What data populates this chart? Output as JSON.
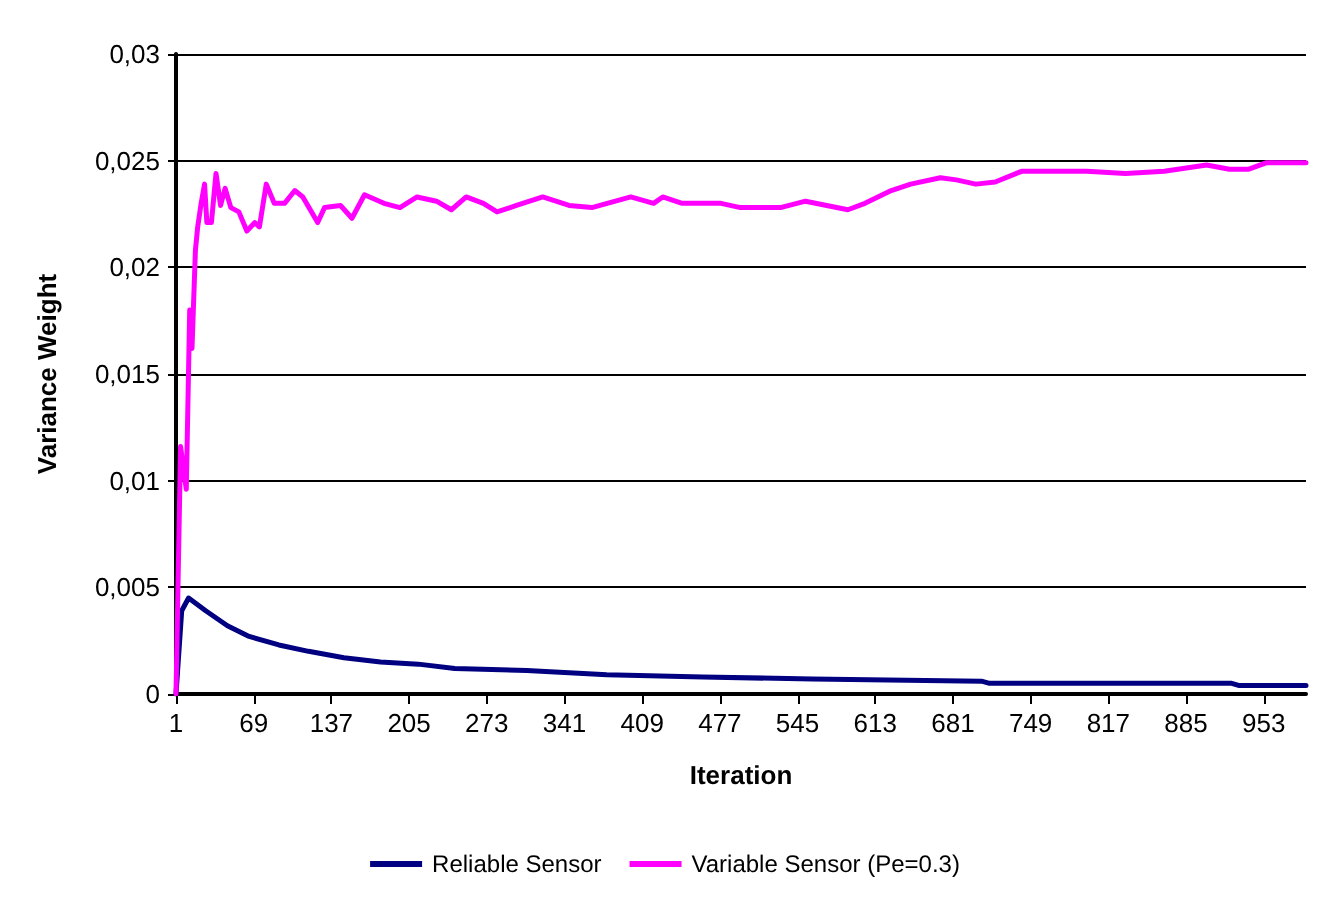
{
  "chart_data": {
    "type": "line",
    "xlabel": "Iteration",
    "ylabel": "Variance Weight",
    "xlim": [
      1,
      990
    ],
    "xticks": [
      1,
      69,
      137,
      205,
      273,
      341,
      409,
      477,
      545,
      613,
      681,
      749,
      817,
      885,
      953
    ],
    "ylim": [
      0,
      0.03
    ],
    "yticks": [
      0,
      {
        "value": 0.005,
        "label": "0,005"
      },
      {
        "value": 0.01,
        "label": "0,01"
      },
      {
        "value": 0.015,
        "label": "0,015"
      },
      {
        "value": 0.02,
        "label": "0,02"
      },
      {
        "value": 0.025,
        "label": "0,025"
      },
      {
        "value": 0.03,
        "label": "0,03"
      }
    ],
    "grid": "y",
    "legend": "bottom",
    "marker": "none",
    "line_style": "solid",
    "series": [
      {
        "name": "Reliable Sensor",
        "color": "#000080",
        "x": [
          1,
          6,
          12,
          27,
          46,
          65,
          91,
          117,
          148,
          180,
          213,
          245,
          308,
          378,
          462,
          558,
          706,
          713,
          925,
          931,
          990
        ],
        "values": [
          0,
          0.0039,
          0.0045,
          0.0039,
          0.0032,
          0.0027,
          0.0023,
          0.002,
          0.0017,
          0.0015,
          0.0014,
          0.0012,
          0.0011,
          0.0009,
          0.0008,
          0.0007,
          0.0006,
          0.0005,
          0.0005,
          0.0004,
          0.0004
        ]
      },
      {
        "name": "Variable Sensor (Pe=0.3)",
        "color": "#ff00ff",
        "x": [
          1,
          5,
          10,
          13,
          15,
          18,
          20,
          23,
          26,
          28,
          32,
          36,
          40,
          44,
          49,
          56,
          63,
          70,
          74,
          80,
          87,
          96,
          105,
          112,
          125,
          131,
          145,
          155,
          166,
          183,
          197,
          212,
          229,
          242,
          255,
          270,
          282,
          299,
          322,
          345,
          365,
          399,
          419,
          427,
          444,
          478,
          495,
          530,
          552,
          589,
          604,
          627,
          644,
          670,
          684,
          701,
          718,
          741,
          775,
          798,
          832,
          866,
          903,
          923,
          940,
          955,
          990
        ],
        "values": [
          0,
          0.0116,
          0.0096,
          0.018,
          0.0162,
          0.0208,
          0.0219,
          0.023,
          0.0239,
          0.0221,
          0.0221,
          0.0244,
          0.0229,
          0.0237,
          0.0228,
          0.0226,
          0.0217,
          0.0221,
          0.0219,
          0.0239,
          0.023,
          0.023,
          0.0236,
          0.0233,
          0.0221,
          0.0228,
          0.0229,
          0.0223,
          0.0234,
          0.023,
          0.0228,
          0.0233,
          0.0231,
          0.0227,
          0.0233,
          0.023,
          0.0226,
          0.0229,
          0.0233,
          0.0229,
          0.0228,
          0.0233,
          0.023,
          0.0233,
          0.023,
          0.023,
          0.0228,
          0.0228,
          0.0231,
          0.0227,
          0.023,
          0.0236,
          0.0239,
          0.0242,
          0.0241,
          0.0239,
          0.024,
          0.0245,
          0.0245,
          0.0245,
          0.0244,
          0.0245,
          0.0248,
          0.0246,
          0.0246,
          0.0249,
          0.0249
        ]
      }
    ]
  }
}
